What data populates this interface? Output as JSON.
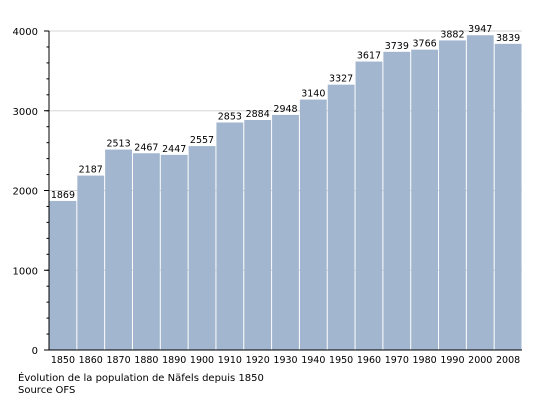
{
  "caption": {
    "title": "Évolution de la population de Näfels depuis 1850",
    "source": "Source OFS"
  },
  "chart_data": {
    "type": "bar",
    "categories": [
      "1850",
      "1860",
      "1870",
      "1880",
      "1890",
      "1900",
      "1910",
      "1920",
      "1930",
      "1940",
      "1950",
      "1960",
      "1970",
      "1980",
      "1990",
      "2000",
      "2008"
    ],
    "values": [
      1869,
      2187,
      2513,
      2467,
      2447,
      2557,
      2853,
      2884,
      2948,
      3140,
      3327,
      3617,
      3739,
      3766,
      3882,
      3947,
      3839
    ],
    "title": "",
    "xlabel": "",
    "ylabel": "",
    "ylim": [
      0,
      4000
    ],
    "yticks": [
      0,
      1000,
      2000,
      3000,
      4000
    ],
    "grid": true,
    "data_labels": true,
    "colors": {
      "bar": "#a2b6cf",
      "grid": "#d6d6d6",
      "axis": "#000000",
      "text": "#000000"
    }
  }
}
